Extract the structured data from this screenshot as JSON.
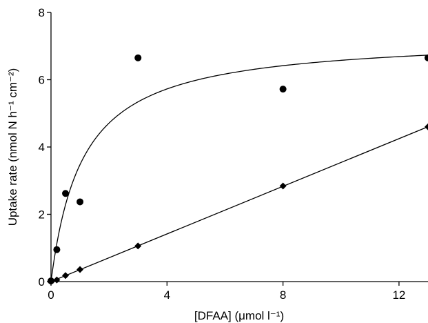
{
  "chart_data": {
    "type": "scatter",
    "title": "",
    "xlabel": "[DFAA] (μmol l⁻¹)",
    "ylabel": "Uptake rate (nmol N h⁻¹ cm⁻²)",
    "xlim": [
      0,
      13
    ],
    "ylim": [
      0,
      8
    ],
    "xticks": [
      0,
      4,
      8,
      12
    ],
    "yticks": [
      0,
      2,
      4,
      6,
      8
    ],
    "grid": false,
    "legend": "none",
    "series": [
      {
        "marker": "circle",
        "color": "#000000",
        "points": [
          {
            "x": 0.0,
            "y": 0.02
          },
          {
            "x": 0.2,
            "y": 0.95
          },
          {
            "x": 0.5,
            "y": 2.62
          },
          {
            "x": 1.0,
            "y": 2.37
          },
          {
            "x": 3.0,
            "y": 6.65
          },
          {
            "x": 8.0,
            "y": 5.72
          },
          {
            "x": 13.0,
            "y": 6.65
          }
        ],
        "fit": {
          "model": "michaelis-menten",
          "vmax": 7.3,
          "km": 1.1
        }
      },
      {
        "marker": "diamond",
        "color": "#000000",
        "points": [
          {
            "x": 0.0,
            "y": 0.0
          },
          {
            "x": 0.2,
            "y": 0.05
          },
          {
            "x": 0.5,
            "y": 0.18
          },
          {
            "x": 1.0,
            "y": 0.36
          },
          {
            "x": 3.0,
            "y": 1.06
          },
          {
            "x": 8.0,
            "y": 2.84
          },
          {
            "x": 13.0,
            "y": 4.6
          }
        ],
        "fit": {
          "model": "linear",
          "slope": 0.354,
          "intercept": 0.0
        }
      }
    ]
  }
}
